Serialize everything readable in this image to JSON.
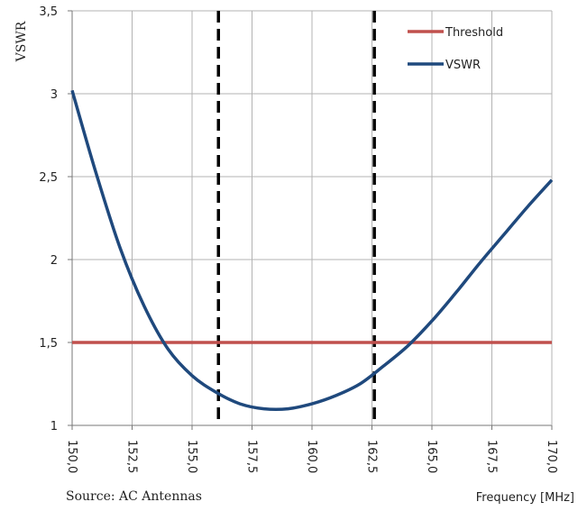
{
  "chart_data": {
    "type": "line",
    "title": "",
    "xlabel": "Frequency [MHz]",
    "ylabel": "VSWR",
    "xlim": [
      150,
      170
    ],
    "ylim": [
      1,
      3.5
    ],
    "x_ticks": [
      "150,0",
      "152,5",
      "155,0",
      "157,5",
      "160,0",
      "162,5",
      "165,0",
      "167,5",
      "170,0"
    ],
    "y_ticks": [
      "1",
      "1,5",
      "2",
      "2,5",
      "3",
      "3,5"
    ],
    "grid": true,
    "legend_position": "top-right",
    "series": [
      {
        "name": "Threshold",
        "color": "#c0504d",
        "x": [
          150,
          170
        ],
        "y": [
          1.5,
          1.5
        ]
      },
      {
        "name": "VSWR",
        "color": "#1f497d",
        "x": [
          150,
          151,
          152,
          153,
          154,
          155,
          156,
          157,
          158,
          159,
          160,
          161,
          162,
          163,
          164,
          165,
          166,
          167,
          168,
          169,
          170
        ],
        "y": [
          3.02,
          2.52,
          2.07,
          1.72,
          1.46,
          1.3,
          1.2,
          1.13,
          1.1,
          1.1,
          1.13,
          1.18,
          1.25,
          1.36,
          1.48,
          1.63,
          1.8,
          1.98,
          2.15,
          2.32,
          2.48
        ]
      }
    ],
    "vertical_markers": [
      156.1,
      162.6
    ],
    "source": "Source: AC Antennas"
  }
}
